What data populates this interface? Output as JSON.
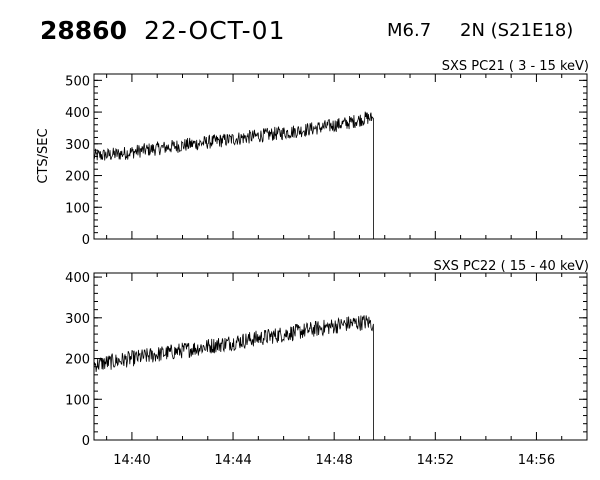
{
  "header": {
    "event_id": "28860",
    "date": "22-OCT-01",
    "goes_class": "M6.7",
    "optical": "2N (S21E18)"
  },
  "chart_data": [
    {
      "type": "line",
      "title": "SXS PC21  (  3 - 15 keV)",
      "ylabel": "CTS/SEC",
      "xlabel": "",
      "x_ticks": [
        "14:40",
        "14:44",
        "14:48",
        "14:52",
        "14:56"
      ],
      "x_tick_values_min": [
        880,
        884,
        888,
        892,
        896
      ],
      "xlim_min": [
        878.5,
        898.0
      ],
      "ylim": [
        0,
        520
      ],
      "y_ticks": [
        0,
        100,
        200,
        300,
        400,
        500
      ],
      "show_x_tick_labels": false,
      "series": [
        {
          "x": [
            878.5,
            879.5,
            880.5,
            881.5,
            882.5,
            883.5,
            884.5,
            885.5,
            886.5,
            887.5,
            888.5,
            889.3,
            889.5,
            889.55
          ],
          "values": [
            262,
            268,
            280,
            290,
            300,
            310,
            320,
            330,
            340,
            352,
            365,
            382,
            380,
            0
          ],
          "noise": 22
        }
      ]
    },
    {
      "type": "line",
      "title": "SXS PC22  ( 15 - 40 keV)",
      "ylabel": "",
      "xlabel": "",
      "x_ticks": [
        "14:40",
        "14:44",
        "14:48",
        "14:52",
        "14:56"
      ],
      "x_tick_values_min": [
        880,
        884,
        888,
        892,
        896
      ],
      "xlim_min": [
        878.5,
        898.0
      ],
      "ylim": [
        0,
        410
      ],
      "y_ticks": [
        0,
        100,
        200,
        300,
        400
      ],
      "show_x_tick_labels": true,
      "series": [
        {
          "x": [
            878.5,
            879.5,
            880.5,
            881.5,
            882.5,
            883.5,
            884.5,
            885.5,
            886.5,
            887.5,
            888.5,
            889.3,
            889.5,
            889.55
          ],
          "values": [
            185,
            195,
            205,
            215,
            225,
            235,
            245,
            255,
            265,
            275,
            285,
            290,
            285,
            0
          ],
          "noise": 20
        }
      ]
    }
  ]
}
